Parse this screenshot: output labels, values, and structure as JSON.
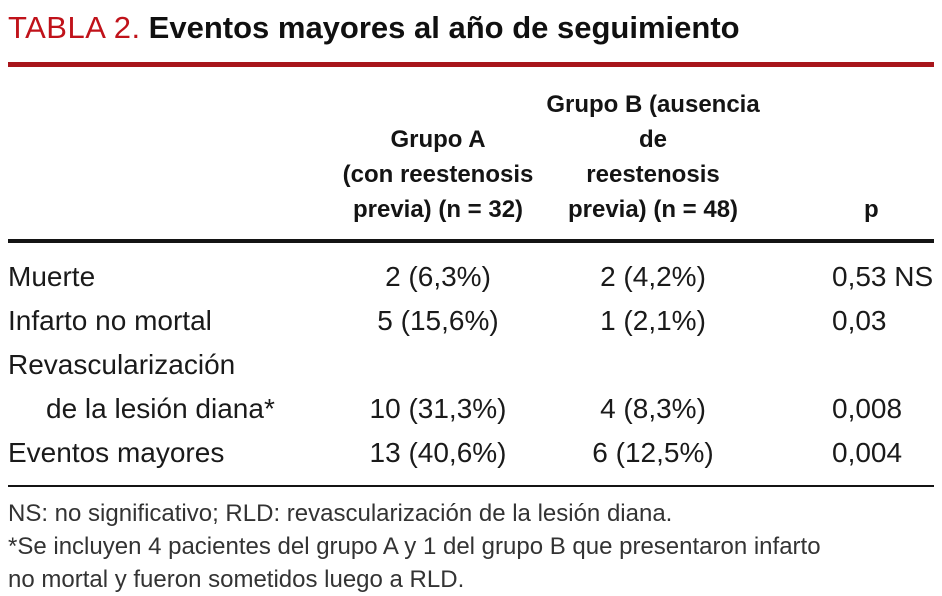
{
  "colors": {
    "accent": "#c0121a",
    "rule_red": "#a8151b",
    "text": "#1c1c1c",
    "footnote": "#333333"
  },
  "title": {
    "tag": "TABLA 2.",
    "text": "Eventos mayores al año de seguimiento"
  },
  "table": {
    "header": {
      "col_a": "Grupo A\n(con reestenosis\nprevia) (n = 32)",
      "col_b": "Grupo B (ausencia de\nreestenosis\nprevia) (n = 48)",
      "col_p": "p"
    },
    "rows": [
      {
        "label": "Muerte",
        "a": "2 (6,3%)",
        "b": "2 (4,2%)",
        "p": "0,53 NS"
      },
      {
        "label": "Infarto no mortal",
        "a": "5 (15,6%)",
        "b": "1 (2,1%)",
        "p": "0,03"
      },
      {
        "label": "Revascularización",
        "label2": "de la lesión diana*",
        "a": "10 (31,3%)",
        "b": "4 (8,3%)",
        "p": "0,008"
      },
      {
        "label": "Eventos mayores",
        "a": "13 (40,6%)",
        "b": "6 (12,5%)",
        "p": "0,004"
      }
    ]
  },
  "footnotes": [
    "NS: no significativo; RLD: revascularización de la lesión diana.",
    "*Se incluyen 4 pacientes del grupo A y 1 del grupo B que presentaron infarto\nno mortal y fueron sometidos luego a RLD."
  ],
  "chart_data": {
    "type": "table",
    "title": "TABLA 2. Eventos mayores al año de seguimiento",
    "columns": [
      "",
      "Grupo A (con reestenosis previa) (n = 32)",
      "Grupo B (ausencia de reestenosis previa) (n = 48)",
      "p"
    ],
    "rows": [
      [
        "Muerte",
        "2 (6,3%)",
        "2 (4,2%)",
        "0,53 NS"
      ],
      [
        "Infarto no mortal",
        "5 (15,6%)",
        "1 (2,1%)",
        "0,03"
      ],
      [
        "Revascularización de la lesión diana*",
        "10 (31,3%)",
        "4 (8,3%)",
        "0,008"
      ],
      [
        "Eventos mayores",
        "13 (40,6%)",
        "6 (12,5%)",
        "0,004"
      ]
    ]
  }
}
